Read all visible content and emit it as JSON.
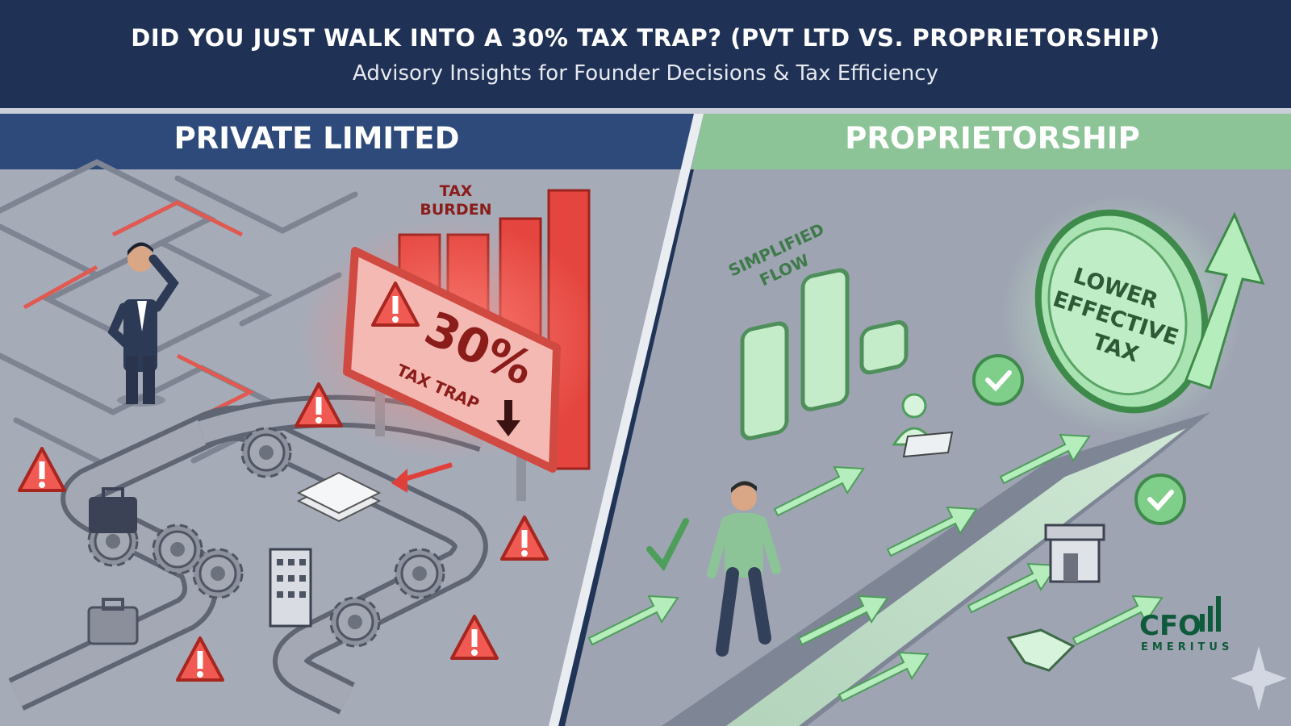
{
  "header": {
    "title": "DID YOU JUST WALK INTO A 30% TAX TRAP? (PVT LTD VS. PROPRIETORSHIP)",
    "subtitle": "Advisory Insights for Founder Decisions & Tax Efficiency"
  },
  "left_panel": {
    "title": "PRIVATE LIMITED",
    "bars_label_1": "TAX",
    "bars_label_2": "BURDEN",
    "sign_percent": "30%",
    "sign_text": "TAX TRAP",
    "icons": [
      "maze",
      "businessman-thinking",
      "warning-triangle",
      "gear",
      "briefcase",
      "document-stack",
      "office-building",
      "down-arrow"
    ]
  },
  "right_panel": {
    "title": "PROPRIETORSHIP",
    "flow_label_1": "SIMPLIFIED",
    "flow_label_2": "FLOW",
    "badge_1": "LOWER",
    "badge_2": "EFFECTIVE",
    "badge_3": "TAX",
    "icons": [
      "walking-person",
      "check-circle",
      "laptop-user",
      "storefront",
      "handshake",
      "up-arrow"
    ]
  },
  "logo": {
    "line1": "CFO",
    "line2": "EMERITUS"
  },
  "colors": {
    "navy": "#1f3154",
    "left_band": "#2e4a7b",
    "right_band": "#8cc497",
    "danger": "#e0403a",
    "success": "#6fbf7c",
    "logo": "#0f5a3a"
  }
}
